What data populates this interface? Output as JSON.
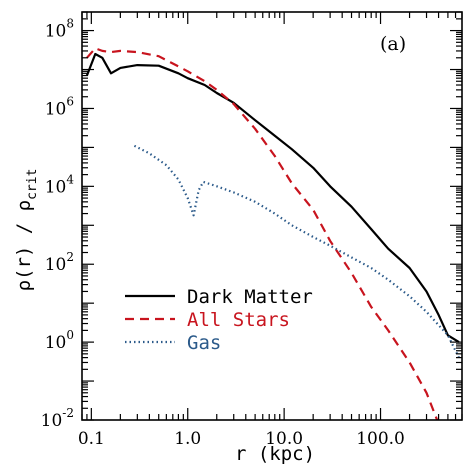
{
  "chart_data": {
    "type": "line",
    "title": "",
    "panel_label": "(a)",
    "xlabel": "r (kpc)",
    "ylabel": "ρ(r) / ρcrit",
    "ylabel_main": "ρ(r) / ρ",
    "ylabel_sub": "crit",
    "xscale": "log",
    "yscale": "log",
    "xlim": [
      0.08,
      700
    ],
    "ylim": [
      0.01,
      300000000
    ],
    "x_ticks": [
      {
        "value": 0.1,
        "label": "0.1"
      },
      {
        "value": 1,
        "label": "1.0"
      },
      {
        "value": 10,
        "label": "10.0"
      },
      {
        "value": 100,
        "label": "100.0"
      }
    ],
    "y_ticks": [
      {
        "value": 100000000,
        "base": "10",
        "exp": "8"
      },
      {
        "value": 1000000,
        "base": "10",
        "exp": "6"
      },
      {
        "value": 10000,
        "base": "10",
        "exp": "4"
      },
      {
        "value": 100,
        "base": "10",
        "exp": "2"
      },
      {
        "value": 1,
        "base": "10",
        "exp": "0"
      },
      {
        "value": 0.01,
        "base": "10",
        "exp": "-2"
      }
    ],
    "legend_position": "bottom-left",
    "series": [
      {
        "name": "Dark Matter",
        "color": "#000000",
        "style": "solid",
        "points": [
          [
            0.09,
            7000000
          ],
          [
            0.11,
            25000000
          ],
          [
            0.13,
            20000000
          ],
          [
            0.16,
            8000000
          ],
          [
            0.2,
            11000000
          ],
          [
            0.3,
            13000000
          ],
          [
            0.5,
            12500000
          ],
          [
            0.8,
            8000000
          ],
          [
            1.0,
            6000000
          ],
          [
            1.5,
            4000000
          ],
          [
            2.0,
            2500000
          ],
          [
            3.0,
            1400000
          ],
          [
            5.0,
            500000
          ],
          [
            8.0,
            200000
          ],
          [
            12.0,
            90000
          ],
          [
            20.0,
            30000
          ],
          [
            30.0,
            10000
          ],
          [
            50.0,
            3000
          ],
          [
            80.0,
            800
          ],
          [
            120.0,
            250
          ],
          [
            200.0,
            80
          ],
          [
            300.0,
            20
          ],
          [
            400.0,
            5
          ],
          [
            500.0,
            1.5
          ],
          [
            650.0,
            1
          ]
        ]
      },
      {
        "name": "All Stars",
        "color": "#c8141e",
        "style": "dashed",
        "points": [
          [
            0.09,
            20000000
          ],
          [
            0.11,
            35000000
          ],
          [
            0.13,
            30000000
          ],
          [
            0.16,
            28000000
          ],
          [
            0.2,
            30000000
          ],
          [
            0.3,
            28000000
          ],
          [
            0.5,
            22000000
          ],
          [
            0.8,
            12000000
          ],
          [
            1.0,
            9000000
          ],
          [
            1.5,
            5000000
          ],
          [
            2.0,
            3000000
          ],
          [
            3.0,
            1300000
          ],
          [
            5.0,
            300000
          ],
          [
            8.0,
            60000
          ],
          [
            12.0,
            12000
          ],
          [
            20.0,
            2500
          ],
          [
            30.0,
            400
          ],
          [
            50.0,
            60
          ],
          [
            80.0,
            8
          ],
          [
            120.0,
            2
          ],
          [
            200.0,
            0.3
          ],
          [
            300.0,
            0.05
          ],
          [
            400.0,
            0.008
          ],
          [
            480.0,
            0.004
          ]
        ]
      },
      {
        "name": "Gas",
        "color": "#2b5a8a",
        "style": "dotted",
        "points": [
          [
            0.28,
            110000
          ],
          [
            0.4,
            70000
          ],
          [
            0.6,
            35000
          ],
          [
            0.8,
            15000
          ],
          [
            1.0,
            5000
          ],
          [
            1.15,
            1800
          ],
          [
            1.3,
            8000
          ],
          [
            1.45,
            13000
          ],
          [
            2.0,
            10000
          ],
          [
            3.0,
            7000
          ],
          [
            5.0,
            4000
          ],
          [
            8.0,
            2000
          ],
          [
            12.0,
            1000
          ],
          [
            20.0,
            500
          ],
          [
            30.0,
            300
          ],
          [
            50.0,
            150
          ],
          [
            80.0,
            80
          ],
          [
            120.0,
            40
          ],
          [
            200.0,
            15
          ],
          [
            300.0,
            6
          ],
          [
            500.0,
            1.5
          ],
          [
            650.0,
            0.4
          ]
        ]
      }
    ]
  }
}
